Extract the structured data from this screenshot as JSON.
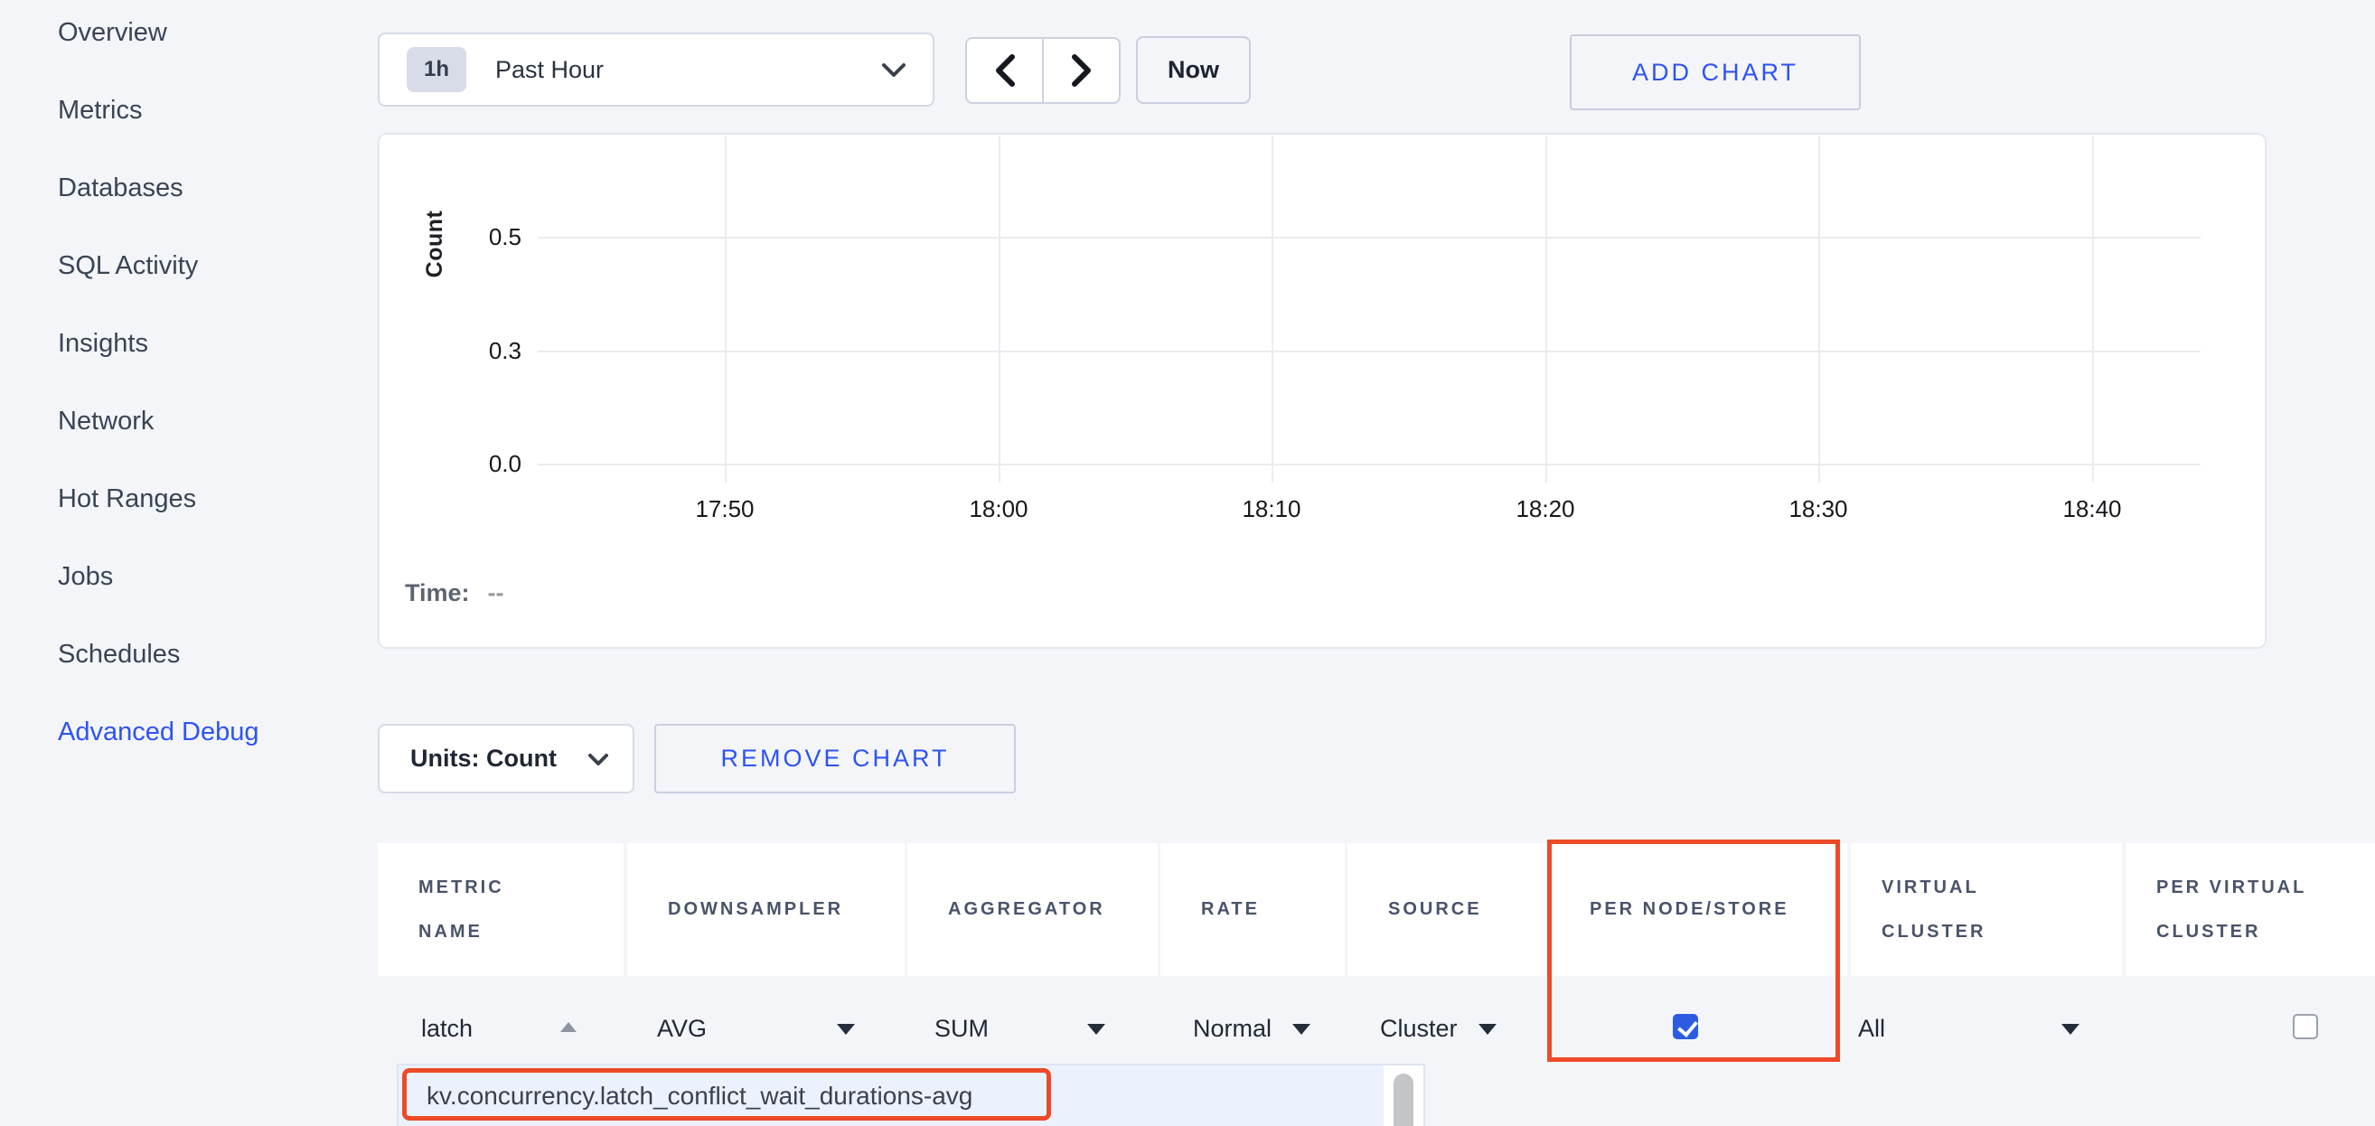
{
  "colors": {
    "accent_blue": "#2e53f2",
    "highlight_red": "#ee4a28",
    "checkbox_blue": "#2b5ce2",
    "page_background": "#f4f5f9"
  },
  "sidebar": {
    "items": [
      {
        "label": "Overview",
        "active": false
      },
      {
        "label": "Metrics",
        "active": false
      },
      {
        "label": "Databases",
        "active": false
      },
      {
        "label": "SQL Activity",
        "active": false
      },
      {
        "label": "Insights",
        "active": false
      },
      {
        "label": "Network",
        "active": false
      },
      {
        "label": "Hot Ranges",
        "active": false
      },
      {
        "label": "Jobs",
        "active": false
      },
      {
        "label": "Schedules",
        "active": false
      },
      {
        "label": "Advanced Debug",
        "active": true
      }
    ]
  },
  "toolbar": {
    "time_range_badge": "1h",
    "time_range_label": "Past Hour",
    "now_label": "Now",
    "add_chart_label": "ADD CHART"
  },
  "chart": {
    "time_label": "Time:",
    "time_value": "--"
  },
  "chart_data": {
    "type": "line",
    "title": "",
    "xlabel": "",
    "ylabel": "Count",
    "x_ticks": [
      "17:50",
      "18:00",
      "18:10",
      "18:20",
      "18:30",
      "18:40"
    ],
    "y_ticks": [
      "0.5",
      "0.3",
      "0.0"
    ],
    "y_tick_values": [
      0.5,
      0.3,
      0.0
    ],
    "ylim": [
      0.0,
      0.6
    ],
    "grid": true,
    "legend": "none",
    "series": [],
    "note": "empty chart - no data series plotted"
  },
  "chart_controls": {
    "units_label": "Units: Count",
    "remove_chart_label": "REMOVE CHART"
  },
  "metric_table": {
    "columns": [
      {
        "label": "METRIC NAME"
      },
      {
        "label": "DOWNSAMPLER"
      },
      {
        "label": "AGGREGATOR"
      },
      {
        "label": "RATE"
      },
      {
        "label": "SOURCE"
      },
      {
        "label": "PER NODE/STORE"
      },
      {
        "label": "VIRTUAL CLUSTER"
      },
      {
        "label": "PER VIRTUAL CLUSTER"
      }
    ],
    "row": {
      "metric_name": "latch",
      "downsampler": "AVG",
      "aggregator": "SUM",
      "rate": "Normal",
      "source": "Cluster",
      "per_node_store_checked": true,
      "virtual_cluster": "All",
      "per_virtual_cluster_checked": false
    }
  },
  "metric_dropdown": {
    "suggestions": [
      "kv.concurrency.latch_conflict_wait_durations-avg"
    ]
  }
}
